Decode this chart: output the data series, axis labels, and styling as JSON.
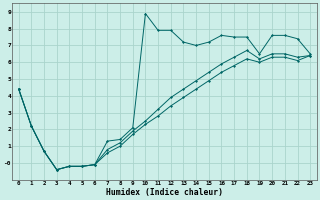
{
  "title": "",
  "xlabel": "Humidex (Indice chaleur)",
  "bg_color": "#cceee8",
  "grid_color": "#aad4cc",
  "line_color": "#006666",
  "xlim": [
    -0.5,
    23.5
  ],
  "ylim": [
    -1.0,
    9.5
  ],
  "xticks": [
    0,
    1,
    2,
    3,
    4,
    5,
    6,
    7,
    8,
    9,
    10,
    11,
    12,
    13,
    14,
    15,
    16,
    17,
    18,
    19,
    20,
    21,
    22,
    23
  ],
  "yticks": [
    0,
    1,
    2,
    3,
    4,
    5,
    6,
    7,
    8,
    9
  ],
  "ytick_labels": [
    "-0",
    "1",
    "2",
    "3",
    "4",
    "5",
    "6",
    "7",
    "8",
    "9"
  ],
  "line1_x": [
    0,
    1,
    2,
    3,
    4,
    5,
    6,
    7,
    8,
    9,
    10,
    11,
    12,
    13,
    14,
    15,
    16,
    17,
    18,
    19,
    20,
    21,
    22,
    23
  ],
  "line1_y": [
    4.4,
    2.2,
    0.7,
    -0.4,
    -0.2,
    -0.2,
    -0.1,
    1.3,
    1.4,
    2.1,
    8.9,
    7.9,
    7.9,
    7.2,
    7.0,
    7.2,
    7.6,
    7.5,
    7.5,
    6.5,
    7.6,
    7.6,
    7.4,
    6.5
  ],
  "line2_x": [
    0,
    1,
    2,
    3,
    4,
    5,
    6,
    7,
    8,
    9,
    10,
    11,
    12,
    13,
    14,
    15,
    16,
    17,
    18,
    19,
    20,
    21,
    22,
    23
  ],
  "line2_y": [
    4.4,
    2.2,
    0.7,
    -0.4,
    -0.2,
    -0.2,
    -0.1,
    0.8,
    1.2,
    1.9,
    2.5,
    3.2,
    3.9,
    4.4,
    4.9,
    5.4,
    5.9,
    6.3,
    6.7,
    6.2,
    6.5,
    6.5,
    6.3,
    6.4
  ],
  "line3_x": [
    0,
    1,
    2,
    3,
    4,
    5,
    6,
    7,
    8,
    9,
    10,
    11,
    12,
    13,
    14,
    15,
    16,
    17,
    18,
    19,
    20,
    21,
    22,
    23
  ],
  "line3_y": [
    4.4,
    2.2,
    0.7,
    -0.4,
    -0.2,
    -0.2,
    -0.1,
    0.6,
    1.0,
    1.7,
    2.3,
    2.8,
    3.4,
    3.9,
    4.4,
    4.9,
    5.4,
    5.8,
    6.2,
    6.0,
    6.3,
    6.3,
    6.1,
    6.4
  ]
}
